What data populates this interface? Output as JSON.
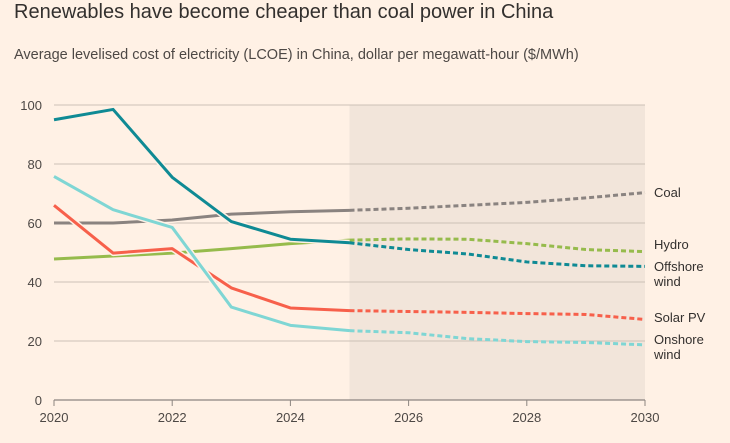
{
  "title": "Renewables have become cheaper than coal power in China",
  "subtitle": "Average levelised cost of electricity (LCOE) in China, dollar per megawatt-hour ($/MWh)",
  "chart_data": {
    "type": "line",
    "title": "Renewables have become cheaper than coal power in China",
    "subtitle": "Average levelised cost of electricity (LCOE) in China, dollar per megawatt-hour ($/MWh)",
    "xlabel": "",
    "ylabel": "",
    "x": [
      2020,
      2021,
      2022,
      2023,
      2024,
      2025,
      2026,
      2027,
      2028,
      2029,
      2030
    ],
    "xlim": [
      2020,
      2030
    ],
    "ylim": [
      0,
      100
    ],
    "xticks": [
      2020,
      2022,
      2024,
      2026,
      2028,
      2030
    ],
    "yticks": [
      0,
      20,
      40,
      60,
      80,
      100
    ],
    "grid": true,
    "forecast_start": 2025,
    "forecast_style": "dashed, shaded background",
    "legend": "direct labels at right",
    "series": [
      {
        "name": "Coal",
        "label_lines": [
          "Coal"
        ],
        "color": "#8a8380",
        "values": [
          60,
          60,
          61,
          63,
          63.8,
          64.3,
          65,
          66,
          67,
          68.5,
          70.3
        ]
      },
      {
        "name": "Hydro",
        "label_lines": [
          "Hydro"
        ],
        "color": "#96bb4c",
        "values": [
          47.8,
          48.8,
          49.8,
          51.3,
          53,
          54.2,
          54.6,
          54.5,
          53,
          51,
          50.3
        ]
      },
      {
        "name": "Offshore wind",
        "label_lines": [
          "Offshore",
          "wind"
        ],
        "color": "#0f8a94",
        "values": [
          95,
          98.5,
          75.5,
          60.5,
          54.5,
          53.3,
          51,
          49.5,
          46.8,
          45.5,
          45.3
        ]
      },
      {
        "name": "Solar PV",
        "label_lines": [
          "Solar PV"
        ],
        "color": "#f7604b",
        "values": [
          66,
          49.8,
          51.3,
          38,
          31.2,
          30.3,
          30,
          29.7,
          29.3,
          29,
          27.3
        ]
      },
      {
        "name": "Onshore wind",
        "label_lines": [
          "Onshore",
          "wind"
        ],
        "color": "#7fd6d4",
        "values": [
          75.8,
          64.5,
          58.5,
          31.5,
          25.3,
          23.5,
          22.8,
          20.8,
          19.8,
          19.5,
          18.7
        ]
      }
    ]
  }
}
